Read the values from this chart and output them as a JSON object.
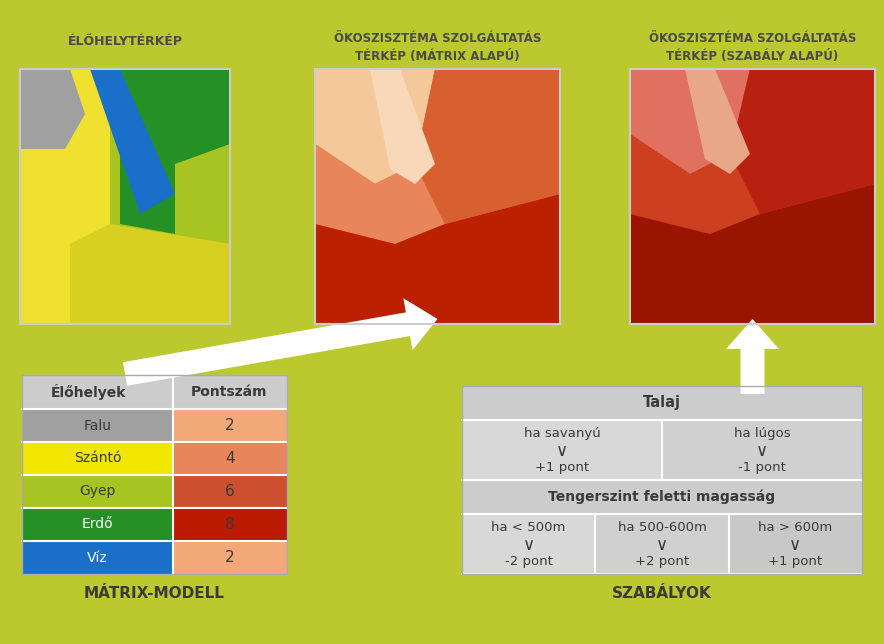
{
  "bg_color": "#bbc92e",
  "title1": "ÉLŐHELYTÉRKÉP",
  "title2": "ÖKOSZISZTÉMA SZOLGÁLTATÁS\nTÉRKÉP (MÁTRIX ALAPÚ)",
  "title3": "ÖKOSZISZTÉMA SZOLGÁLTATÁS\nTÉRKÉP (SZABÁLY ALAPÚ)",
  "subtitle1": "MÁTRIX-MODELL",
  "subtitle2": "SZABÁLYOK",
  "table1_header": [
    "Élőhelyek",
    "Pontszám"
  ],
  "table1_rows": [
    {
      "label": "Falu",
      "label_color": "#a0a0a0",
      "label_text_color": "#3a3a3a",
      "value": "2",
      "value_color": "#f2a878"
    },
    {
      "label": "Szántó",
      "label_color": "#f0e600",
      "label_text_color": "#3a3a3a",
      "value": "4",
      "value_color": "#e8855a"
    },
    {
      "label": "Gyep",
      "label_color": "#a8c420",
      "label_text_color": "#3a3a3a",
      "value": "6",
      "value_color": "#cc5030"
    },
    {
      "label": "Erdő",
      "label_color": "#259025",
      "label_text_color": "#ffffff",
      "value": "8",
      "value_color": "#bb1a00"
    },
    {
      "label": "Víz",
      "label_color": "#1a70c8",
      "label_text_color": "#ffffff",
      "value": "2",
      "value_color": "#f2a878"
    }
  ],
  "table2_header": "Talaj",
  "table2_row2_header": "Tengerszint feletti magasság",
  "table_bg": "#e0e0e0",
  "table_header_bg": "#cccccc",
  "title_color": "#4a4a4a",
  "text_color": "#3a3a3a",
  "map1_colors": {
    "yellow": "#f0e030",
    "yellow2": "#d8d020",
    "green_light": "#a8c420",
    "green_dark": "#259025",
    "grey": "#a0a0a0",
    "blue": "#1a70c8"
  },
  "map2_colors": {
    "peach_light": "#f5c89a",
    "orange_mid": "#e8855a",
    "orange": "#d86030",
    "red_dark": "#bb2000",
    "river": "#f8d8b8"
  },
  "map3_colors": {
    "salmon": "#e07060",
    "orange_red": "#cc4020",
    "red": "#b82010",
    "dark_red": "#991500",
    "river": "#e8a888"
  }
}
